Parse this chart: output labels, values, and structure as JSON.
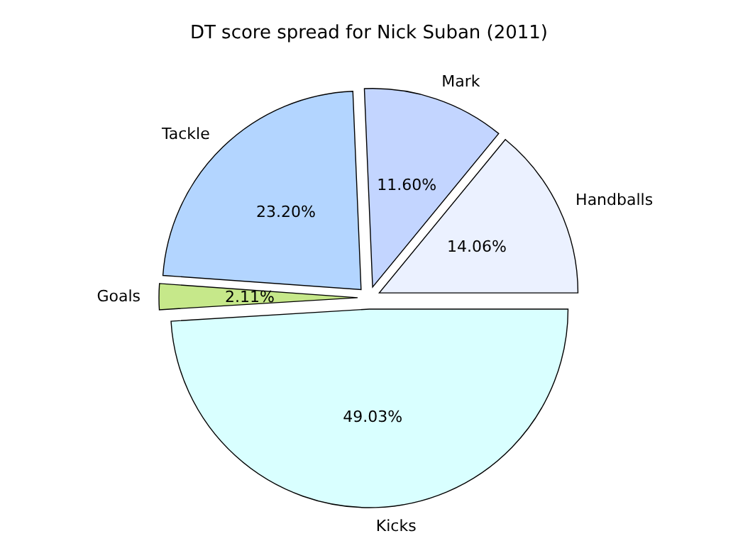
{
  "chart_data": {
    "type": "pie",
    "title": "DT score spread for Nick Suban (2011)",
    "categories": [
      "Handballs",
      "Mark",
      "Tackle",
      "Goals",
      "Kicks"
    ],
    "values": [
      14.06,
      11.6,
      23.2,
      2.11,
      49.03
    ],
    "value_labels": [
      "14.06%",
      "11.60%",
      "23.20%",
      "2.11%",
      "49.03%"
    ],
    "colors": [
      "#ebf1ff",
      "#c3d5ff",
      "#b3d5ff",
      "#c6e88a",
      "#d9ffff"
    ]
  }
}
